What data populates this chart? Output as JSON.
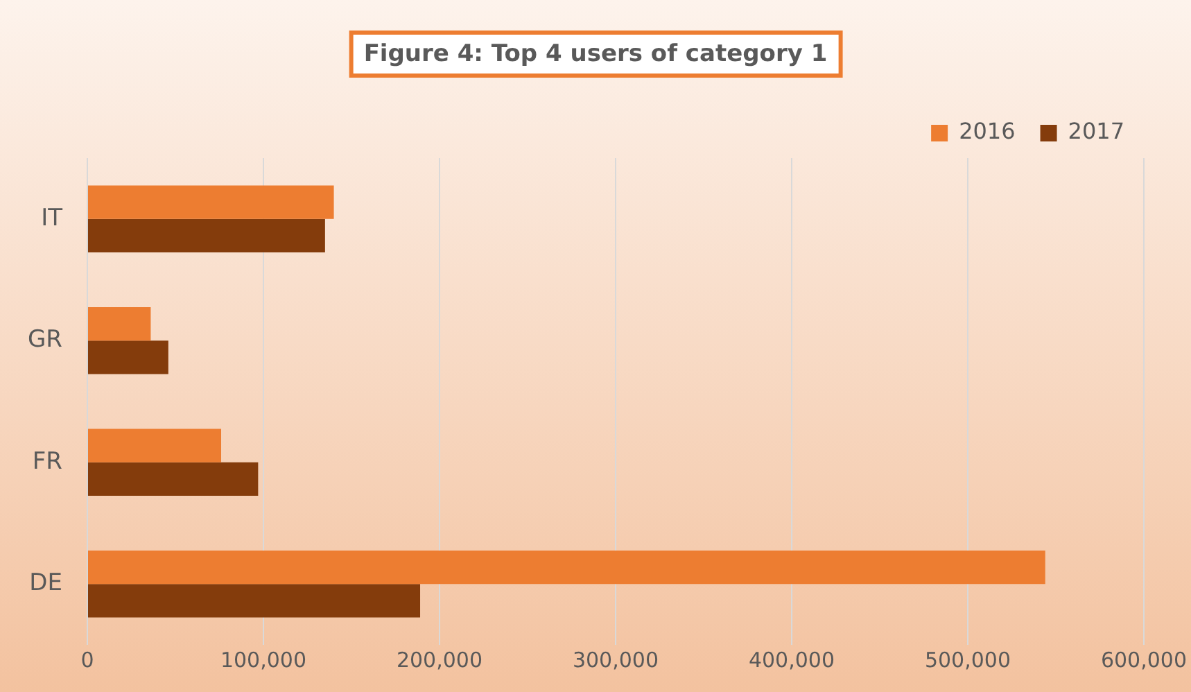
{
  "chart_data": {
    "type": "bar",
    "orientation": "horizontal",
    "title": "Figure 4: Top 4 users of category 1",
    "categories": [
      "IT",
      "GR",
      "FR",
      "DE"
    ],
    "series": [
      {
        "name": "2016",
        "color": "#ed7d31",
        "values": [
          140000,
          36000,
          76000,
          544000
        ]
      },
      {
        "name": "2017",
        "color": "#843c0c",
        "values": [
          135000,
          46000,
          97000,
          189000
        ]
      }
    ],
    "xlim": [
      0,
      600000
    ],
    "xticks": [
      {
        "value": 0,
        "label": "0"
      },
      {
        "value": 100000,
        "label": "100,000"
      },
      {
        "value": 200000,
        "label": "200,000"
      },
      {
        "value": 300000,
        "label": "300,000"
      },
      {
        "value": 400000,
        "label": "400,000"
      },
      {
        "value": 500000,
        "label": "500,000"
      },
      {
        "value": 600000,
        "label": "600,000"
      }
    ],
    "grid": "x",
    "legend": "top right"
  }
}
